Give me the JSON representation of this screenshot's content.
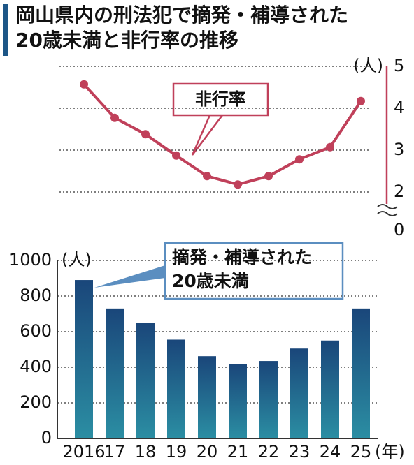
{
  "title": "岡山県内の刑法犯で摘発・補導された20歳未満と非行率の推移",
  "chart_data": [
    {
      "type": "line",
      "y_label": "(人)",
      "categories": [
        "2016",
        "17",
        "18",
        "19",
        "20",
        "21",
        "22",
        "23",
        "24",
        "25"
      ],
      "series": [
        {
          "name": "非行率",
          "color": "#c0405a",
          "values": [
            4.57,
            3.77,
            3.38,
            2.87,
            2.38,
            2.18,
            2.38,
            2.78,
            3.07,
            4.17
          ]
        }
      ],
      "ylim": [
        2,
        5
      ],
      "yticks": [
        0,
        2,
        3,
        4,
        5
      ],
      "axis_break": true,
      "grid": true
    },
    {
      "type": "bar",
      "y_label": "(人)",
      "x_label": "(年)",
      "categories": [
        "2016",
        "17",
        "18",
        "19",
        "20",
        "21",
        "22",
        "23",
        "24",
        "25"
      ],
      "series": [
        {
          "name": "摘発・補導された20歳未満",
          "color": "#1d5687",
          "values": [
            890,
            730,
            650,
            555,
            462,
            418,
            435,
            505,
            550,
            730
          ]
        }
      ],
      "ylim": [
        0,
        1000
      ],
      "yticks": [
        0,
        200,
        400,
        600,
        800,
        1000
      ],
      "grid": true
    }
  ]
}
